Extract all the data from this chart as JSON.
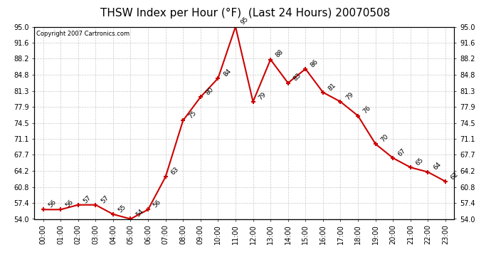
{
  "title": "THSW Index per Hour (°F)  (Last 24 Hours) 20070508",
  "copyright": "Copyright 2007 Cartronics.com",
  "hours": [
    0,
    1,
    2,
    3,
    4,
    5,
    6,
    7,
    8,
    9,
    10,
    11,
    12,
    13,
    14,
    15,
    16,
    17,
    18,
    19,
    20,
    21,
    22,
    23
  ],
  "hour_labels": [
    "00:00",
    "01:00",
    "02:00",
    "03:00",
    "04:00",
    "05:00",
    "06:00",
    "07:00",
    "08:00",
    "09:00",
    "10:00",
    "11:00",
    "12:00",
    "13:00",
    "14:00",
    "15:00",
    "16:00",
    "17:00",
    "18:00",
    "19:00",
    "20:00",
    "21:00",
    "22:00",
    "23:00"
  ],
  "values": [
    56,
    56,
    57,
    57,
    55,
    54,
    56,
    63,
    75,
    80,
    84,
    95,
    79,
    88,
    83,
    86,
    81,
    79,
    76,
    70,
    67,
    65,
    64,
    62
  ],
  "ylim": [
    54.0,
    95.0
  ],
  "yticks": [
    54.0,
    57.4,
    60.8,
    64.2,
    67.7,
    71.1,
    74.5,
    77.9,
    81.3,
    84.8,
    88.2,
    91.6,
    95.0
  ],
  "line_color": "#cc0000",
  "marker_color": "#cc0000",
  "bg_color": "#ffffff",
  "plot_bg_color": "#ffffff",
  "grid_color": "#bbbbbb",
  "title_fontsize": 11,
  "label_fontsize": 7,
  "annotation_fontsize": 6.5,
  "copyright_fontsize": 6
}
